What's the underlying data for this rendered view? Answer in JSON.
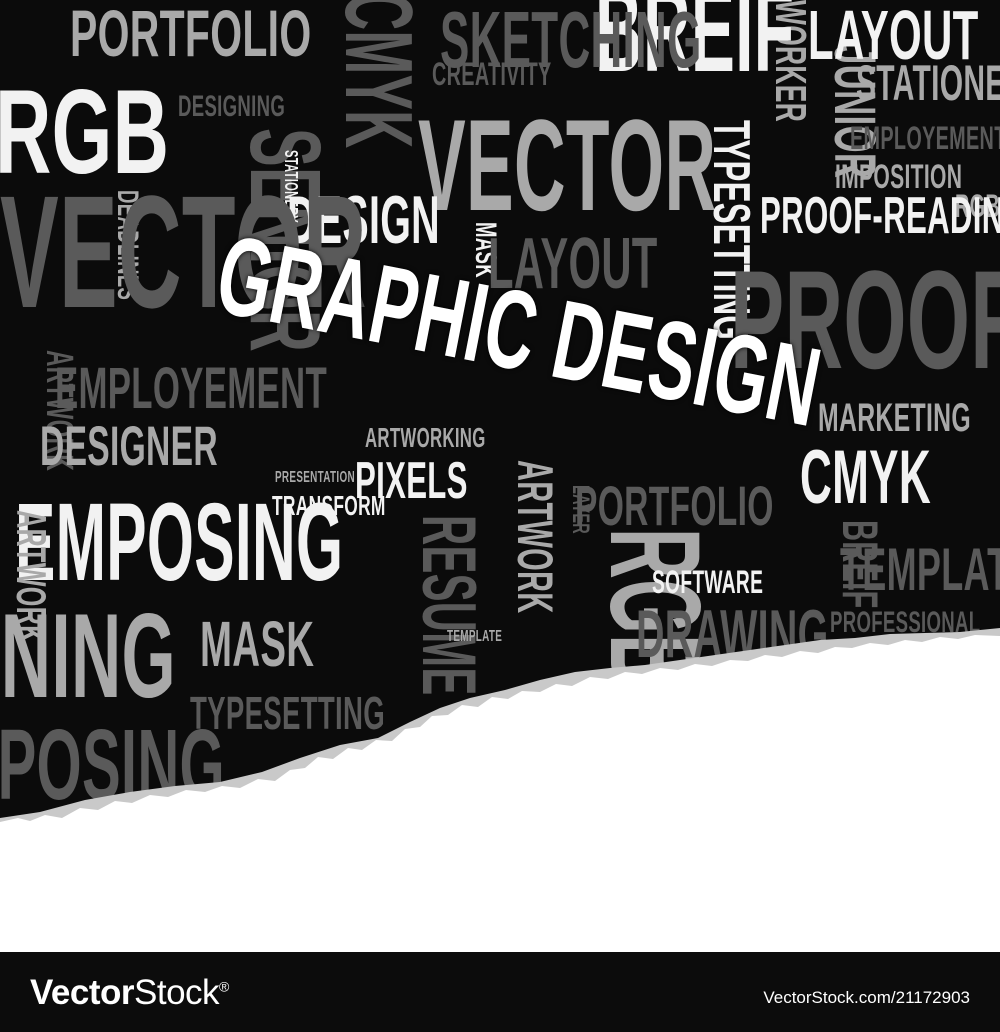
{
  "artwork": {
    "headline": "GRAPHIC DESIGN",
    "colors": {
      "background": "#0b0b0b",
      "paper": "#ffffff",
      "text_light": "#f2f2f2",
      "text_mid": "#a9a9a9",
      "text_dark": "#5a5a5a"
    },
    "words": [
      {
        "text": "PORTFOLIO",
        "tone": "mid"
      },
      {
        "text": "RGB",
        "tone": "light"
      },
      {
        "text": "DESIGNING",
        "tone": "dark"
      },
      {
        "text": "SENIOR",
        "tone": "dark"
      },
      {
        "text": "DEADLINES",
        "tone": "mid"
      },
      {
        "text": "CMYK",
        "tone": "dark"
      },
      {
        "text": "CREATIVITY",
        "tone": "dark"
      },
      {
        "text": "VECTOR",
        "tone": "mid"
      },
      {
        "text": "STATIONERY",
        "tone": "light"
      },
      {
        "text": "DESIGN",
        "tone": "light"
      },
      {
        "text": "MASK",
        "tone": "light"
      },
      {
        "text": "LAYOUT",
        "tone": "dark"
      },
      {
        "text": "TYPESETTING",
        "tone": "light"
      },
      {
        "text": "WORKER",
        "tone": "mid"
      },
      {
        "text": "JUNIOR",
        "tone": "mid"
      },
      {
        "text": "LAYOUT",
        "tone": "light"
      },
      {
        "text": "STATIONERY",
        "tone": "mid"
      },
      {
        "text": "EMPLOYEMENT",
        "tone": "dark"
      },
      {
        "text": "IMPOSITION",
        "tone": "mid"
      },
      {
        "text": "RGB",
        "tone": "mid"
      },
      {
        "text": "PROOF-READING",
        "tone": "light"
      },
      {
        "text": "PROOF",
        "tone": "dark"
      },
      {
        "text": "ARTWORK",
        "tone": "dark"
      },
      {
        "text": "EMPLOYEMENT",
        "tone": "dark"
      },
      {
        "text": "DESIGNER",
        "tone": "mid"
      },
      {
        "text": "ARTWORKING",
        "tone": "mid"
      },
      {
        "text": "PRESENTATION",
        "tone": "mid"
      },
      {
        "text": "PIXELS",
        "tone": "light"
      },
      {
        "text": "TRANSFORM",
        "tone": "light"
      },
      {
        "text": "EMPOSING",
        "tone": "light"
      },
      {
        "text": "RESUME",
        "tone": "dark"
      },
      {
        "text": "ARTWORK",
        "tone": "mid"
      },
      {
        "text": "LAYER",
        "tone": "dark"
      },
      {
        "text": "PORTFOLIO",
        "tone": "dark"
      },
      {
        "text": "RGB",
        "tone": "mid"
      },
      {
        "text": "MARKETING",
        "tone": "mid"
      },
      {
        "text": "CMYK",
        "tone": "light"
      },
      {
        "text": "PORTFOLIO",
        "tone": "light"
      },
      {
        "text": "SOFTWARE",
        "tone": "light"
      },
      {
        "text": "BREIF",
        "tone": "dark"
      },
      {
        "text": "TEMPLATE",
        "tone": "dark"
      },
      {
        "text": "PROFESSIONAL",
        "tone": "dark"
      },
      {
        "text": "DRAWING",
        "tone": "dark"
      },
      {
        "text": "TEMPLATE",
        "tone": "mid"
      },
      {
        "text": "MASK",
        "tone": "mid"
      },
      {
        "text": "TYPESETTING",
        "tone": "dark"
      },
      {
        "text": "SIGNING",
        "tone": "mid"
      },
      {
        "text": "EMPOSING",
        "tone": "dark"
      },
      {
        "text": "BREIF",
        "tone": "light"
      },
      {
        "text": "VECTOR",
        "tone": "dark"
      },
      {
        "text": "SKETCHING",
        "tone": "dark"
      },
      {
        "text": "ARTWORK",
        "tone": "mid"
      }
    ]
  },
  "footer": {
    "logo_bold": "Vector",
    "logo_light": "Stock",
    "logo_reg": "®",
    "image_id": "VectorStock.com/21172903"
  }
}
